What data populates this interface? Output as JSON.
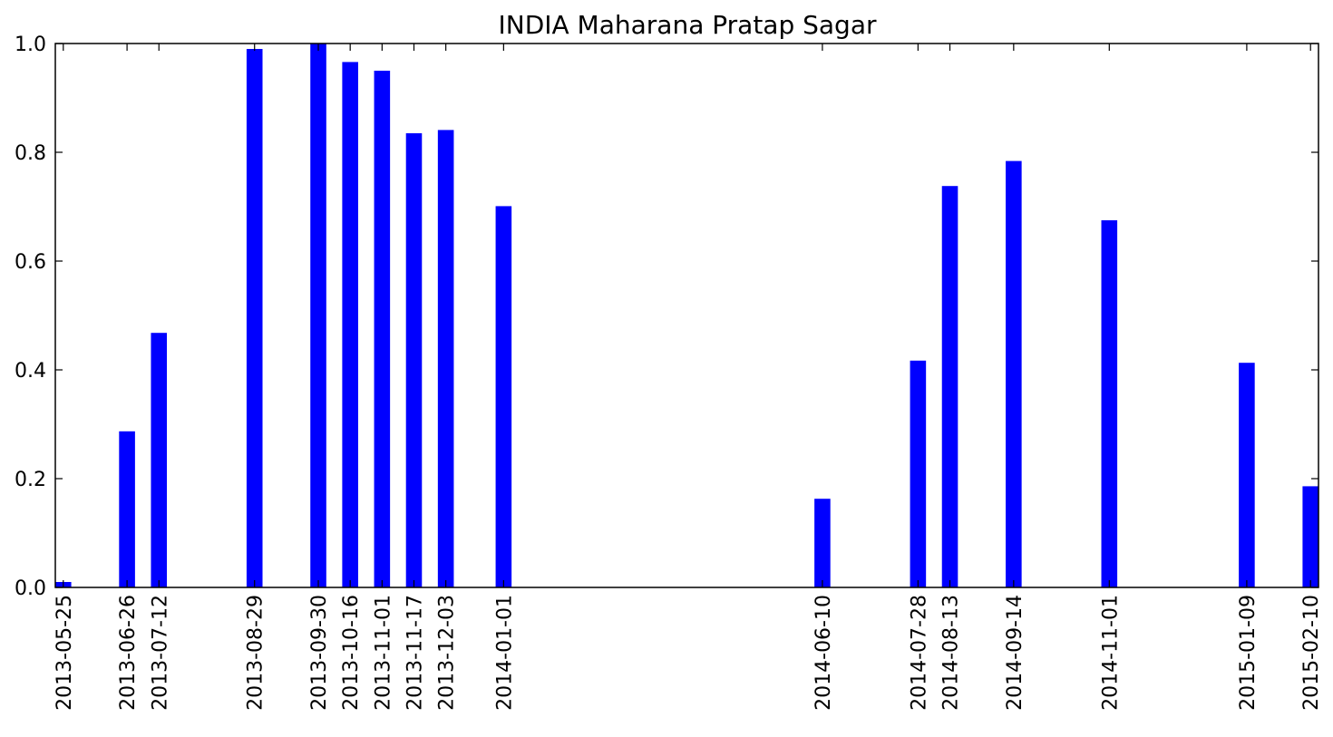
{
  "chart_data": {
    "type": "bar",
    "title": "INDIA Maharana Pratap Sagar",
    "xlabel": "",
    "ylabel": "",
    "x_axis": "date",
    "xlim": [
      "2013-05-25",
      "2015-02-10"
    ],
    "ylim": [
      0,
      1.0
    ],
    "yticks": [
      "0.0",
      "0.2",
      "0.4",
      "0.6",
      "0.8",
      "1.0"
    ],
    "bar_color": "#0000ff",
    "grid": false,
    "x": [
      "2013-05-25",
      "2013-06-26",
      "2013-07-12",
      "2013-08-29",
      "2013-09-30",
      "2013-10-16",
      "2013-11-01",
      "2013-11-17",
      "2013-12-03",
      "2014-01-01",
      "2014-06-10",
      "2014-07-28",
      "2014-08-13",
      "2014-09-14",
      "2014-11-01",
      "2015-01-09",
      "2015-02-10"
    ],
    "values": [
      0.01,
      0.287,
      0.468,
      0.99,
      1.0,
      0.966,
      0.95,
      0.835,
      0.841,
      0.701,
      0.163,
      0.417,
      0.738,
      0.784,
      0.675,
      0.413,
      0.186
    ]
  }
}
